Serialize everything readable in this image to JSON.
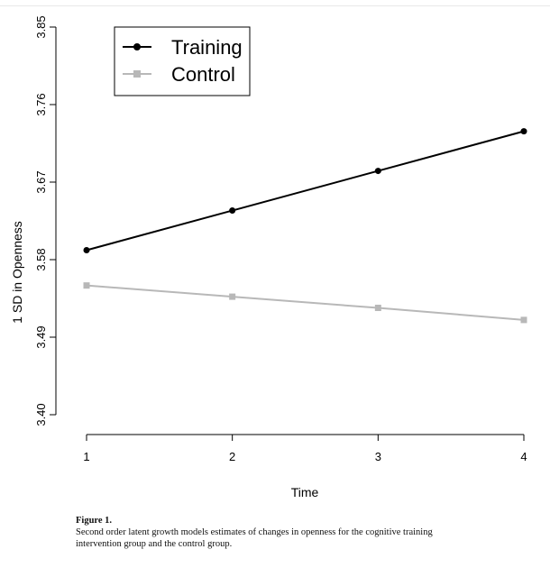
{
  "caption": {
    "label": "Figure 1.",
    "text": "Second order latent growth models estimates of changes in openness for the cognitive training intervention group and the control group."
  },
  "chart_data": {
    "type": "line",
    "title": "",
    "xlabel": "Time",
    "ylabel": "1 SD in Openness",
    "x": [
      1,
      2,
      3,
      4
    ],
    "xticks": [
      "1",
      "2",
      "3",
      "4"
    ],
    "yticks": [
      "3.40",
      "3.49",
      "3.58",
      "3.67",
      "3.76",
      "3.85"
    ],
    "ylim": [
      3.4,
      3.85
    ],
    "xlim": [
      1,
      4
    ],
    "grid": false,
    "legend": "top-left",
    "series": [
      {
        "name": "Training",
        "values": [
          3.591,
          3.637,
          3.683,
          3.729
        ],
        "color": "#000000",
        "marker": "circle"
      },
      {
        "name": "Control",
        "values": [
          3.55,
          3.537,
          3.524,
          3.51
        ],
        "color": "#b8b8b8",
        "marker": "square"
      }
    ]
  }
}
